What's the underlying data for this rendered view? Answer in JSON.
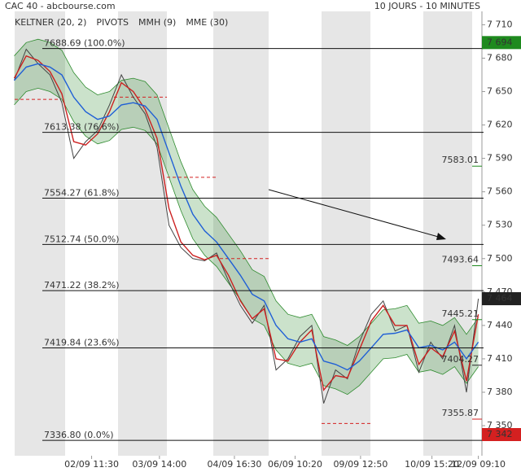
{
  "chart_data": {
    "type": "line",
    "title": "CAC 40 - abcbourse.com",
    "subtitle": "10 JOURS - 10 MINUTES",
    "xlim": [
      -1.2,
      39.3
    ],
    "ylim": [
      7323,
      7722
    ],
    "yticks": [
      {
        "value": 7710,
        "label": "7 710"
      },
      {
        "value": 7680,
        "label": "7 680"
      },
      {
        "value": 7650,
        "label": "7 650"
      },
      {
        "value": 7620,
        "label": "7 620"
      },
      {
        "value": 7590,
        "label": "7 590"
      },
      {
        "value": 7560,
        "label": "7 560"
      },
      {
        "value": 7530,
        "label": "7 530"
      },
      {
        "value": 7500,
        "label": "7 500"
      },
      {
        "value": 7470,
        "label": "7 470"
      },
      {
        "value": 7440,
        "label": "7 440"
      },
      {
        "value": 7410,
        "label": "7 410"
      },
      {
        "value": 7380,
        "label": "7 380"
      },
      {
        "value": 7350,
        "label": "7 350"
      }
    ],
    "xticks": [
      {
        "value": 6.5,
        "label": "02/09 11:30"
      },
      {
        "value": 12.2,
        "label": "03/09 14:00"
      },
      {
        "value": 18.5,
        "label": "04/09 16:30"
      },
      {
        "value": 23.6,
        "label": "06/09 10:20"
      },
      {
        "value": 29.1,
        "label": "09/09 12:50"
      },
      {
        "value": 35.1,
        "label": "10/09 15:20"
      },
      {
        "value": 39,
        "label": "12/09 09:10"
      }
    ],
    "keltner": {
      "name": "KELTNER (20, 2)",
      "color": "#2e8b2e",
      "upper": [
        7682,
        7694,
        7697,
        7694,
        7687,
        7667,
        7654,
        7647,
        7650,
        7660,
        7662,
        7659,
        7647,
        7617,
        7587,
        7562,
        7547,
        7537,
        7522,
        7507,
        7490,
        7484,
        7462,
        7450,
        7447,
        7450,
        7430,
        7427,
        7422,
        7430,
        7442,
        7454,
        7455,
        7458,
        7442,
        7444,
        7440,
        7447,
        7432,
        7447
      ],
      "lower": [
        7638,
        7650,
        7653,
        7650,
        7643,
        7623,
        7610,
        7603,
        7606,
        7616,
        7618,
        7615,
        7603,
        7573,
        7543,
        7518,
        7503,
        7493,
        7478,
        7463,
        7446,
        7440,
        7418,
        7406,
        7403,
        7406,
        7386,
        7383,
        7378,
        7386,
        7398,
        7410,
        7411,
        7414,
        7398,
        7400,
        7396,
        7403,
        7388,
        7403
      ]
    },
    "pivots": {
      "name": "PIVOTS",
      "color": "#d42020",
      "values": [
        7643,
        7645,
        7573,
        7500,
        7352
      ]
    },
    "close": [
      7660,
      7688,
      7675,
      7665,
      7640,
      7590,
      7605,
      7615,
      7638,
      7665,
      7645,
      7630,
      7600,
      7530,
      7510,
      7500,
      7498,
      7505,
      7480,
      7458,
      7442,
      7458,
      7400,
      7410,
      7430,
      7440,
      7370,
      7400,
      7392,
      7425,
      7450,
      7462,
      7435,
      7440,
      7398,
      7425,
      7410,
      7440,
      7380,
      7464
    ],
    "series": [
      {
        "name": "MMH (9)",
        "color": "#cc2020",
        "values": [
          7662,
          7682,
          7678,
          7668,
          7648,
          7605,
          7602,
          7612,
          7632,
          7658,
          7650,
          7634,
          7608,
          7545,
          7515,
          7503,
          7499,
          7503,
          7485,
          7462,
          7446,
          7455,
          7410,
          7408,
          7425,
          7436,
          7382,
          7395,
          7393,
          7418,
          7444,
          7458,
          7440,
          7440,
          7405,
          7420,
          7412,
          7435,
          7390,
          7450
        ]
      },
      {
        "name": "MME (30)",
        "color": "#1f5fd6",
        "values": [
          7660,
          7672,
          7675,
          7672,
          7665,
          7645,
          7632,
          7625,
          7628,
          7638,
          7640,
          7637,
          7625,
          7595,
          7565,
          7540,
          7525,
          7515,
          7500,
          7485,
          7468,
          7462,
          7440,
          7428,
          7425,
          7428,
          7408,
          7405,
          7400,
          7408,
          7420,
          7432,
          7433,
          7436,
          7420,
          7422,
          7418,
          7425,
          7410,
          7425
        ]
      }
    ],
    "levels": [
      {
        "value": 7688.69,
        "label": "7688.69 (100.0%)"
      },
      {
        "value": 7613.38,
        "label": "7613.38 (76.6%)"
      },
      {
        "value": 7554.27,
        "label": "7554.27 (61.8%)"
      },
      {
        "value": 7512.74,
        "label": "7512.74 (50.0%)"
      },
      {
        "value": 7471.22,
        "label": "7471.22 (38.2%)"
      },
      {
        "value": 7419.84,
        "label": "7419.84 (23.6%)"
      },
      {
        "value": 7336.8,
        "label": "7336.80 (0.0%)"
      }
    ],
    "annotations": [
      {
        "value": 7583.01,
        "color": "#1e8a1e"
      },
      {
        "value": 7493.64,
        "color": "#1e8a1e"
      },
      {
        "value": 7445.21,
        "color": "#1e8a1e"
      },
      {
        "value": 7404.27,
        "color": "#222222"
      },
      {
        "value": 7355.87,
        "color": "#d42020"
      }
    ],
    "price_tags": [
      {
        "value": 7694,
        "label": "7 694",
        "color": "#1e8a1e"
      },
      {
        "value": 7464,
        "label": "7 464",
        "color": "#222222"
      },
      {
        "value": 7342,
        "label": "7 342",
        "color": "#d42020"
      }
    ]
  }
}
